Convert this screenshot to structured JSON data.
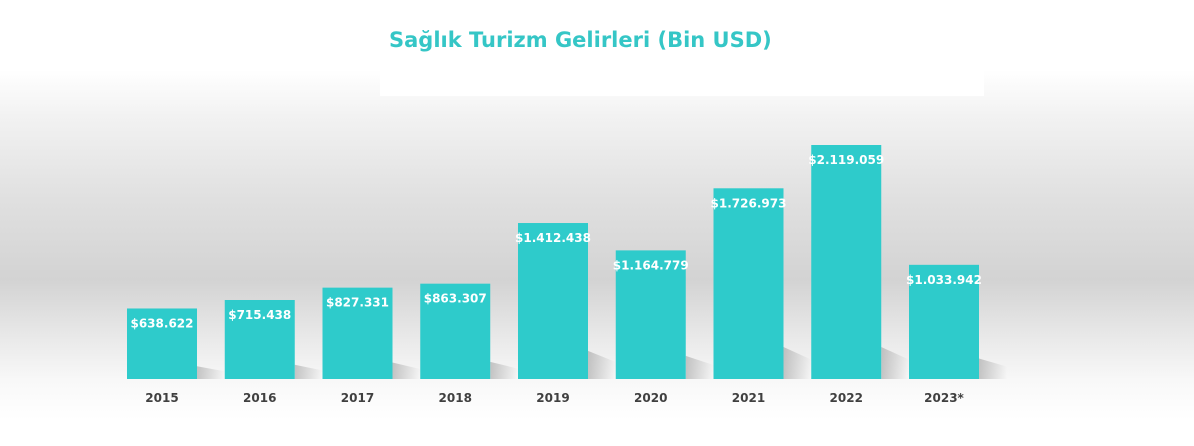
{
  "chart_data": {
    "type": "bar",
    "title": "Sağlık Turizm Gelirleri (Bin USD)",
    "categories": [
      "2015",
      "2016",
      "2017",
      "2018",
      "2019",
      "2020",
      "2021",
      "2022",
      "2023*"
    ],
    "values": [
      638622,
      715438,
      827331,
      863307,
      1412438,
      1164779,
      1726973,
      2119059,
      1033942
    ],
    "value_labels": [
      "$638.622",
      "$715.438",
      "$827.331",
      "$863.307",
      "$1.412.438",
      "$1.164.779",
      "$1.726.973",
      "$2.119.059",
      "$1.033.942"
    ],
    "xlabel": "",
    "ylabel": "",
    "grid": false,
    "legend": "none",
    "colors": {
      "bar": "#2ecbcb",
      "title": "#35c6c6",
      "value_label": "#ffffff",
      "tick_label": "#404040"
    }
  }
}
